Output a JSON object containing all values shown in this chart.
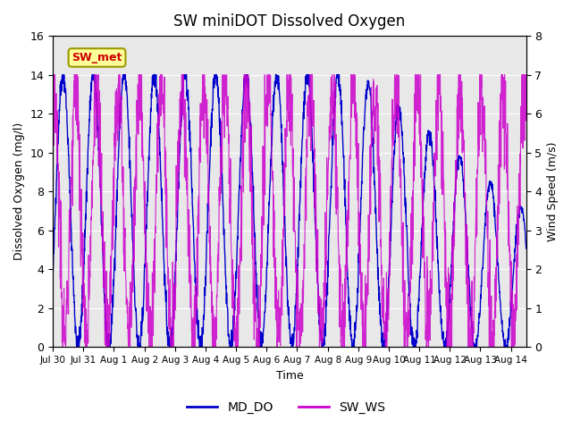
{
  "title": "SW miniDOT Dissolved Oxygen",
  "xlabel": "Time",
  "ylabel_left": "Dissolved Oxygen (mg/l)",
  "ylabel_right": "Wind Speed (m/s)",
  "ylim_left": [
    0,
    16
  ],
  "ylim_right": [
    0,
    8.0
  ],
  "yticks_left": [
    0,
    2,
    4,
    6,
    8,
    10,
    12,
    14,
    16
  ],
  "yticks_right": [
    0.0,
    1.0,
    2.0,
    3.0,
    4.0,
    5.0,
    6.0,
    7.0,
    8.0
  ],
  "xtick_labels": [
    "Jul 30",
    "Jul 31",
    "Aug 1",
    "Aug 2",
    "Aug 3",
    "Aug 4",
    "Aug 5",
    "Aug 6",
    "Aug 7",
    "Aug 8",
    "Aug 9",
    "Aug 10",
    "Aug 11",
    "Aug 12",
    "Aug 13",
    "Aug 14"
  ],
  "color_DO": "#0000cc",
  "color_WS": "#cc00cc",
  "legend_labels": [
    "MD_DO",
    "SW_WS"
  ],
  "annotation_text": "SW_met",
  "annotation_color": "#cc0000",
  "annotation_bg": "#ffff99",
  "annotation_border": "#999900",
  "background_color": "#e8e8e8",
  "plot_bg": "#e8e8e8",
  "n_points": 2000,
  "start_day": 0,
  "end_day": 15.5
}
